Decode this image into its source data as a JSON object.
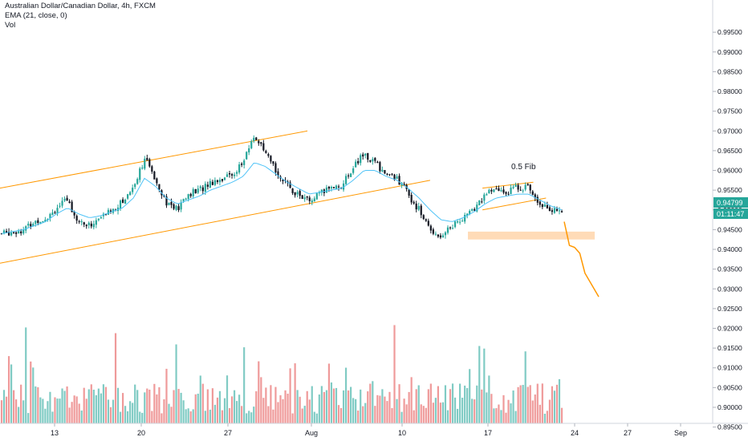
{
  "legend": {
    "symbol_line": "Australian Dollar/Canadian Dollar, 4h, FXCM",
    "ema_line": "EMA (21, close, 0)",
    "vol_line": "Vol"
  },
  "price_badge": {
    "value": "0.94799",
    "timer": "01:11:47"
  },
  "annotation": "0.5 Fib",
  "colors": {
    "up": "#26a69a",
    "down": "#131722",
    "ema": "#4fc3f7",
    "trend": "#ff9800",
    "vol_up": "#80cbc4",
    "vol_down": "#ef9a9a",
    "badge": "#26a69a",
    "zone": "#ffcc99"
  },
  "chart_data": {
    "type": "candlestick",
    "x_ticks": [
      "13",
      "20",
      "27",
      "Aug",
      "10",
      "17",
      "24",
      "27",
      "Sep"
    ],
    "y_ticks": [
      "0.99500",
      "0.99000",
      "0.98500",
      "0.98000",
      "0.97500",
      "0.97000",
      "0.96500",
      "0.96000",
      "0.95500",
      "0.95000",
      "0.94500",
      "0.94000",
      "0.93500",
      "0.93000",
      "0.92500",
      "0.92000",
      "0.91500",
      "0.91000",
      "0.90500",
      "0.90000",
      "0.89500"
    ],
    "ylim": [
      0.8935,
      0.9995
    ],
    "close_path": [
      0.944,
      0.9445,
      0.945,
      0.947,
      0.948,
      0.9505,
      0.9525,
      0.947,
      0.946,
      0.948,
      0.95,
      0.952,
      0.956,
      0.963,
      0.958,
      0.952,
      0.95,
      0.954,
      0.955,
      0.957,
      0.958,
      0.959,
      0.962,
      0.969,
      0.964,
      0.96,
      0.956,
      0.954,
      0.952,
      0.954,
      0.956,
      0.956,
      0.961,
      0.964,
      0.962,
      0.959,
      0.958,
      0.954,
      0.95,
      0.945,
      0.9435,
      0.946,
      0.948,
      0.95,
      0.954,
      0.955,
      0.9545,
      0.956,
      0.9555,
      0.952,
      0.95,
      0.949
    ],
    "ema_path": [
      0.944,
      0.9445,
      0.945,
      0.946,
      0.947,
      0.949,
      0.9505,
      0.949,
      0.948,
      0.9485,
      0.9495,
      0.9505,
      0.953,
      0.958,
      0.956,
      0.953,
      0.9515,
      0.9525,
      0.9535,
      0.955,
      0.956,
      0.957,
      0.9585,
      0.962,
      0.961,
      0.959,
      0.957,
      0.9555,
      0.954,
      0.9545,
      0.955,
      0.9555,
      0.9575,
      0.96,
      0.96,
      0.9585,
      0.9575,
      0.9555,
      0.953,
      0.95,
      0.9475,
      0.947,
      0.948,
      0.9495,
      0.9515,
      0.953,
      0.9535,
      0.954,
      0.954,
      0.9525,
      0.951,
      0.95
    ],
    "channel": {
      "upper": [
        [
          0.0,
          0.9555
        ],
        [
          0.411,
          0.97
        ]
      ],
      "lower": [
        [
          0.0,
          0.9365
        ],
        [
          0.575,
          0.9575
        ]
      ]
    },
    "small_channel": {
      "upper": [
        [
          0.645,
          0.9555
        ],
        [
          0.713,
          0.957
        ]
      ],
      "lower": [
        [
          0.645,
          0.95
        ],
        [
          0.73,
          0.953
        ]
      ]
    },
    "support_zone": [
      0.9425,
      0.9445
    ],
    "projection": [
      [
        0.0,
        0.947
      ],
      [
        0.15,
        0.941
      ],
      [
        0.3,
        0.9405
      ],
      [
        0.45,
        0.939
      ],
      [
        0.6,
        0.934
      ],
      [
        1.0,
        0.928
      ]
    ],
    "volume_up_fraction": 0.55
  }
}
